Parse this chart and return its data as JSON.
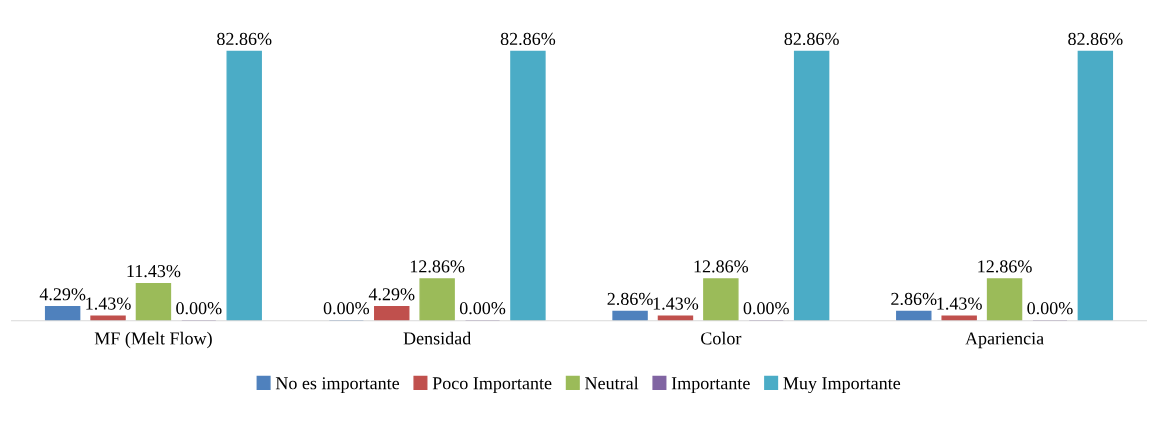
{
  "chart_data": {
    "type": "bar",
    "categories": [
      "MF (Melt Flow)",
      "Densidad",
      "Color",
      "Apariencia"
    ],
    "series": [
      {
        "name": "No es importante",
        "color": "#4f81bd",
        "values": [
          4.29,
          0.0,
          2.86,
          2.86
        ],
        "value_labels": [
          "4.29%",
          "0.00%",
          "2.86%",
          "2.86%"
        ]
      },
      {
        "name": "Poco Importante",
        "color": "#c0504d",
        "values": [
          1.43,
          4.29,
          1.43,
          1.43
        ],
        "value_labels": [
          "1.43%",
          "4.29%",
          "1.43%",
          "1.43%"
        ]
      },
      {
        "name": "Neutral",
        "color": "#9bbb59",
        "values": [
          11.43,
          12.86,
          12.86,
          12.86
        ],
        "value_labels": [
          "11.43%",
          "12.86%",
          "12.86%",
          "12.86%"
        ]
      },
      {
        "name": "Importante",
        "color": "#8064a2",
        "values": [
          0.0,
          0.0,
          0.0,
          0.0
        ],
        "value_labels": [
          "0.00%",
          "0.00%",
          "0.00%",
          "0.00%"
        ]
      },
      {
        "name": "Muy Importante",
        "color": "#4bacc6",
        "values": [
          82.86,
          82.86,
          82.86,
          82.86
        ],
        "value_labels": [
          "82.86%",
          "82.86%",
          "82.86%",
          "82.86%"
        ]
      }
    ],
    "legend": "bottom",
    "grid": false
  }
}
